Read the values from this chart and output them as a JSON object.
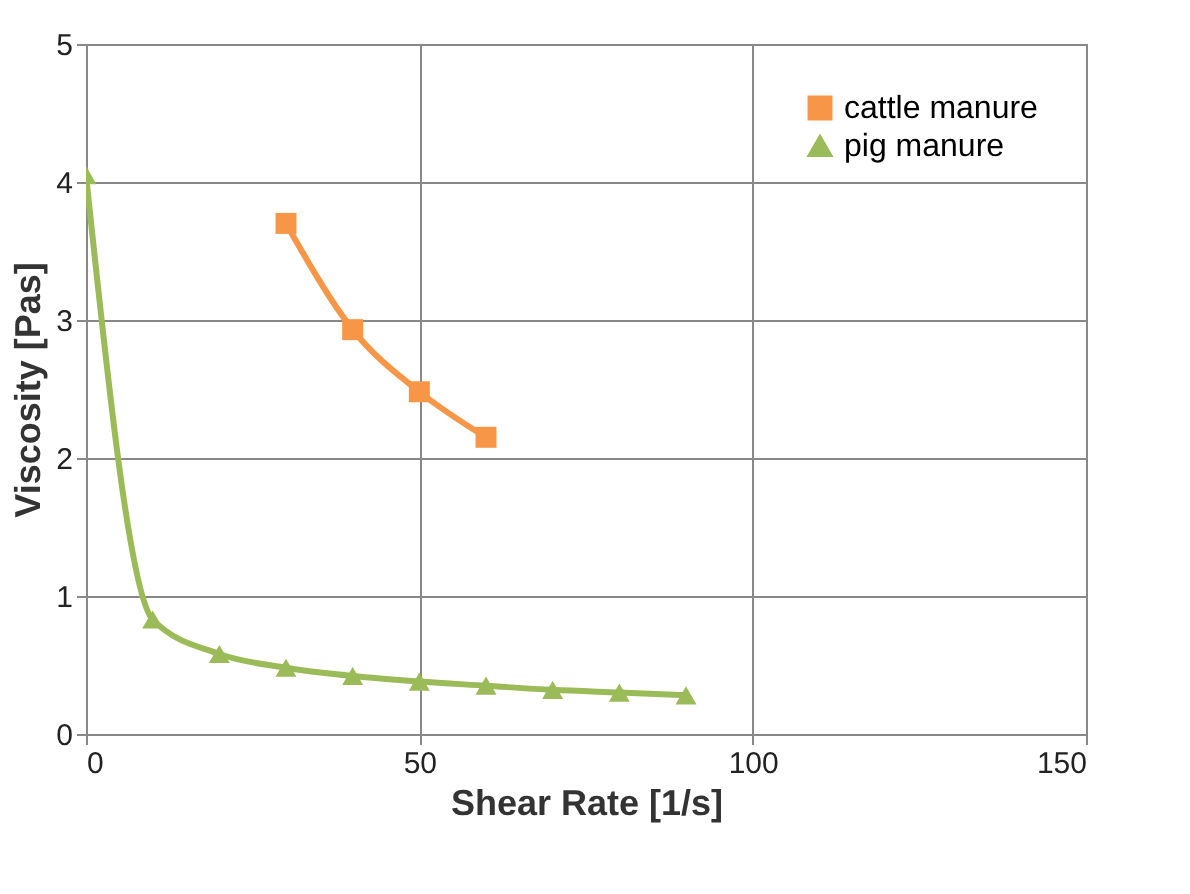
{
  "chart_data": {
    "type": "line",
    "xlabel": "Shear Rate [1/s]",
    "ylabel": "Viscosity [Pas]",
    "xlim": [
      0,
      150
    ],
    "xticks": [
      0,
      50,
      100,
      150
    ],
    "ylim": [
      0,
      5
    ],
    "yticks": [
      0,
      1,
      2,
      3,
      4,
      5
    ],
    "grid": true,
    "legend": "top right",
    "series": [
      {
        "name": "cattle manure",
        "color": "#f79646",
        "marker": "square",
        "x": [
          30,
          40,
          50,
          60
        ],
        "values": [
          3.7,
          2.93,
          2.48,
          2.15
        ]
      },
      {
        "name": "pig manure",
        "color": "#9bbb59",
        "marker": "triangle",
        "x": [
          0,
          10,
          20,
          30,
          40,
          50,
          60,
          70,
          80,
          90
        ],
        "values": [
          4.05,
          0.83,
          0.58,
          0.48,
          0.42,
          0.38,
          0.35,
          0.32,
          0.3,
          0.28
        ]
      }
    ]
  }
}
